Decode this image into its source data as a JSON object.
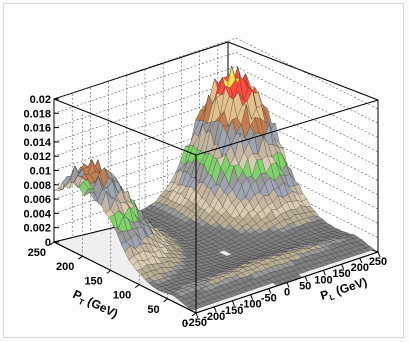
{
  "chart_data": {
    "type": "surface3d",
    "title": "",
    "zlim": [
      0,
      0.02
    ],
    "z_ticks": [
      "0",
      "0.002",
      "0.004",
      "0.006",
      "0.008",
      "0.01",
      "0.012",
      "0.014",
      "0.016",
      "0.018",
      "0.02"
    ],
    "y_axis": {
      "label": "P",
      "subscript": "T",
      "unit": " (GeV)",
      "range": [
        0,
        250
      ],
      "ticks": [
        "250",
        "200",
        "150",
        "100",
        "50",
        "0"
      ]
    },
    "x_axis": {
      "label": "P",
      "subscript": "L",
      "unit": " (GeV)",
      "range": [
        -250,
        250
      ],
      "ticks": [
        "-250",
        "-200",
        "-150",
        "-100",
        "-50",
        "0",
        "50",
        "100",
        "150",
        "200",
        "250"
      ]
    },
    "grid": true,
    "peaks": [
      {
        "description": "left peak",
        "pl": -220,
        "pt": 200,
        "z": 0.0118
      },
      {
        "description": "right peak",
        "pl": 200,
        "pt": 220,
        "z": 0.0165
      }
    ],
    "color_palette": [
      "#7f7f7f",
      "#9a9a9a",
      "#b9ad94",
      "#d8cbb1",
      "#c4b6a0",
      "#9fa6b2",
      "#7fd36a",
      "#c47d4f",
      "#e4c08a",
      "#ff4a3c",
      "#ffe04d"
    ]
  }
}
